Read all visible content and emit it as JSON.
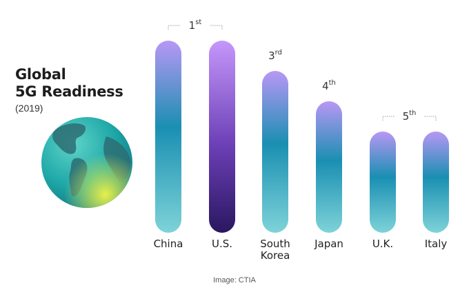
{
  "title": {
    "line1": "Global",
    "line2": "5G Readiness",
    "subtitle": "(2019)"
  },
  "caption": "Image: CTIA",
  "colors": {
    "bar_top": "#b897f5",
    "bar_mid": "#1a8fb2",
    "bar_bottom": "#7ed3d8",
    "us_top": "#c597fb",
    "us_mid": "#6b3fb5",
    "us_bottom": "#2a1760",
    "globe_ocean": "#1ea8a8",
    "globe_land": "#2d6e74",
    "globe_highlight": "#d7ea4a"
  },
  "globe": {
    "icon": "globe-icon"
  },
  "chart_data": {
    "type": "bar",
    "title": "Global 5G Readiness",
    "subtitle": "(2019)",
    "categories": [
      "China",
      "U.S.",
      "South Korea",
      "Japan",
      "U.K.",
      "Italy"
    ],
    "category_lines": [
      [
        "China"
      ],
      [
        "U.S."
      ],
      [
        "South",
        "Korea"
      ],
      [
        "Japan"
      ],
      [
        "U.K."
      ],
      [
        "Italy"
      ]
    ],
    "values": [
      5,
      5,
      4,
      3,
      2,
      2
    ],
    "rank_labels": [
      {
        "num": "1",
        "sup": "st",
        "categories": [
          "China",
          "U.S."
        ]
      },
      {
        "num": "3",
        "sup": "rd",
        "categories": [
          "South Korea"
        ]
      },
      {
        "num": "4",
        "sup": "th",
        "categories": [
          "Japan"
        ]
      },
      {
        "num": "5",
        "sup": "th",
        "categories": [
          "U.K.",
          "Italy"
        ]
      }
    ],
    "highlighted_category": "U.S.",
    "ylim": [
      0,
      5
    ],
    "grid": false,
    "xlabel": "",
    "ylabel": ""
  }
}
